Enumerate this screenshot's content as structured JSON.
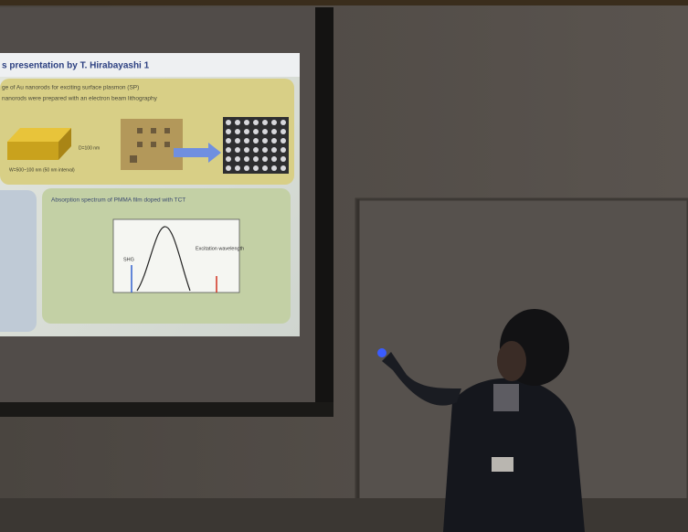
{
  "slide": {
    "title": "s presentation by T. Hirabayashi 1",
    "lines": [
      "ge of Au nanorods for exciting surface plasmon (SP)",
      "nanorods were prepared with an electron beam lithography"
    ],
    "rod_height": "D=100 nm",
    "rod_width": "W=500~100 nm (50 nm interval)",
    "panel_title": "Absorption spectrum of PMMA film doped with TCT",
    "shg": "SHG",
    "excitation": "Excitation wavelength"
  }
}
